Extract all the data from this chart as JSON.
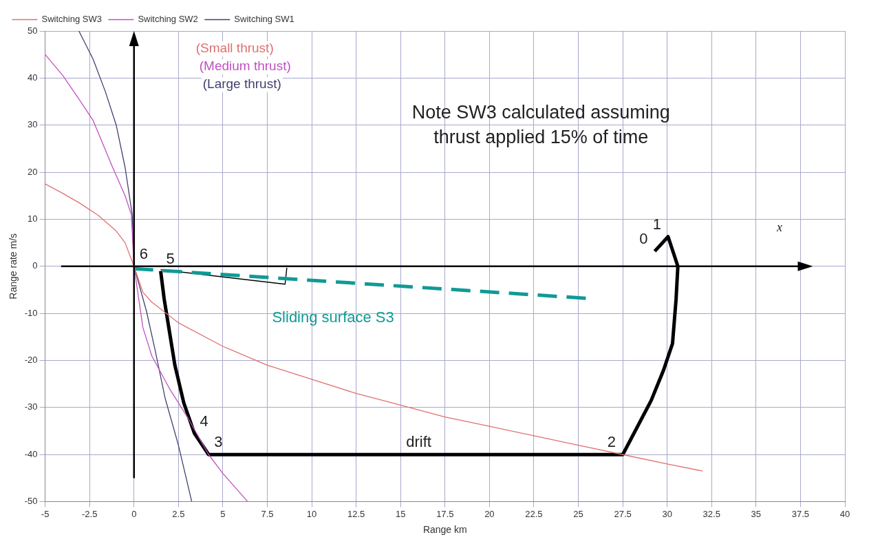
{
  "chart_data": {
    "type": "line",
    "xlabel": "Range km",
    "ylabel": "Range rate m/s",
    "xlim": [
      -5,
      40
    ],
    "xticks": [
      -5,
      -2.5,
      0,
      2.5,
      5,
      7.5,
      10,
      12.5,
      15,
      17.5,
      20,
      22.5,
      25,
      27.5,
      30,
      32.5,
      35,
      37.5,
      40
    ],
    "ylim": [
      -50,
      50
    ],
    "yticks": [
      -50,
      -40,
      -30,
      -20,
      -10,
      0,
      10,
      20,
      30,
      40,
      50
    ],
    "grid": true,
    "legend": "top left",
    "marker": "none",
    "series": [
      {
        "name": "Switching SW3",
        "color": "#e07070",
        "x": [
          -5,
          -4,
          -3,
          -2,
          -1,
          -0.5,
          0,
          0.5,
          1,
          2.5,
          5,
          7.5,
          10,
          12.5,
          15,
          17.5,
          20,
          22.5,
          25,
          27.5,
          30,
          32
        ],
        "values": [
          17.5,
          15.5,
          13.3,
          10.8,
          7.5,
          5,
          0,
          -5.5,
          -7.6,
          -12,
          -17,
          -21,
          -24,
          -27,
          -29.5,
          -32,
          -34,
          -36,
          -38,
          -40,
          -42,
          -43.5
        ]
      },
      {
        "name": "Switching SW2",
        "color": "#c050c0",
        "x": [
          -5,
          -4,
          -3,
          -2.3,
          -1.2,
          -0.5,
          -0.15,
          0,
          0.5,
          1,
          2,
          2.5,
          3,
          4.2,
          5,
          6.4
        ],
        "values": [
          45,
          40.5,
          35,
          31,
          21,
          15,
          11,
          0,
          -13,
          -19,
          -26,
          -29,
          -32,
          -40,
          -44,
          -50
        ]
      },
      {
        "name": "Switching SW1",
        "color": "#404070",
        "x": [
          -3.1,
          -2.3,
          -1.6,
          -1,
          -0.5,
          -0.1,
          0,
          0.7,
          1.2,
          1.75,
          2.5,
          3.25
        ],
        "values": [
          50,
          44,
          37,
          30,
          21,
          11,
          0,
          -9.5,
          -18,
          -28,
          -38,
          -50
        ]
      },
      {
        "color": "#000000",
        "x": [
          29.3,
          30.05,
          30.6,
          30.5,
          30.3,
          29.8,
          29.1,
          27.5,
          4.2,
          3.4,
          2.8,
          2.3,
          2,
          1.7,
          1.5
        ],
        "values": [
          3.2,
          6.3,
          0,
          -7,
          -16.4,
          -22,
          -28.5,
          -40,
          -40,
          -35.5,
          -29,
          -21,
          -14,
          -7,
          -1
        ]
      },
      {
        "color": "#109a96",
        "line_style": "dashed",
        "x": [
          0,
          25.5
        ],
        "values": [
          -0.5,
          -6.8
        ]
      },
      {
        "color": "#000000",
        "x": [
          1.5,
          8.5,
          8.6
        ],
        "values": [
          -0.7,
          -3.8,
          -0.3
        ]
      }
    ],
    "annotations": [
      "(Small thrust)",
      "(Medium thrust)",
      "(Large thrust)",
      "Note SW3 calculated assuming thrust applied 15% of time",
      "Sliding surface S3",
      "x",
      {
        "text": "0",
        "x": 29.3,
        "y": 3.2
      },
      {
        "text": "1",
        "x": 30.05,
        "y": 6.3
      },
      {
        "text": "2",
        "x": 27.5,
        "y": -40
      },
      {
        "text": "3",
        "x": 4.2,
        "y": -40
      },
      {
        "text": "4",
        "x": 3.4,
        "y": -35.5
      },
      {
        "text": "5",
        "x": 1.5,
        "y": -1
      },
      {
        "text": "6",
        "x": 0,
        "y": 0
      },
      {
        "text": "drift",
        "x": 15,
        "y": -40
      }
    ]
  }
}
